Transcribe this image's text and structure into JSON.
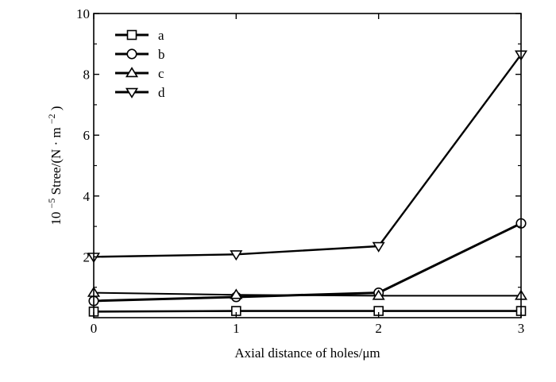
{
  "chart_data": {
    "type": "line",
    "xlabel": "Axial distance of holes/μm",
    "ylabel_prefix": "10",
    "ylabel_exponent": "−5",
    "ylabel_main": "Stree/(N · m",
    "ylabel_unit_exponent": "−2",
    "ylabel_suffix": ")",
    "xlim": [
      0,
      3
    ],
    "ylim": [
      0,
      10
    ],
    "xticks": [
      0,
      1,
      2,
      3
    ],
    "yticks": [
      2,
      4,
      6,
      8,
      10
    ],
    "x": [
      0,
      1,
      2,
      3
    ],
    "grid": false,
    "legend_position": "top-left",
    "series": [
      {
        "name": "a",
        "marker": "square",
        "values": [
          0.2,
          0.22,
          0.22,
          0.22
        ]
      },
      {
        "name": "b",
        "marker": "circle",
        "values": [
          0.55,
          0.68,
          0.82,
          3.1
        ]
      },
      {
        "name": "c",
        "marker": "triangle-up",
        "values": [
          0.82,
          0.75,
          0.72,
          0.72
        ]
      },
      {
        "name": "d",
        "marker": "triangle-down",
        "values": [
          2.0,
          2.08,
          2.35,
          8.65
        ]
      }
    ]
  }
}
